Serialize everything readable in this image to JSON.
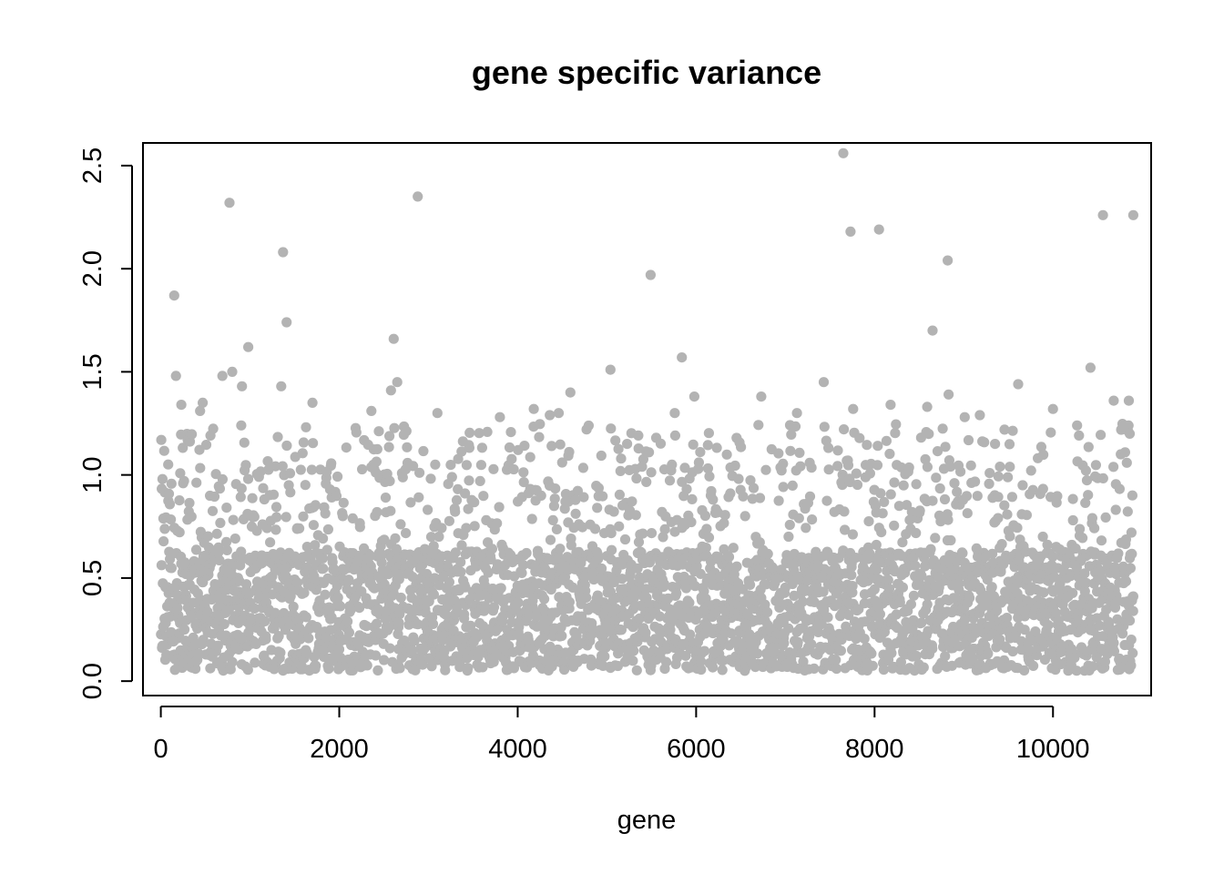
{
  "chart_data": {
    "type": "scatter",
    "title": "gene specific variance",
    "xlabel": "gene",
    "ylabel": "",
    "xlim": [
      -200,
      11100
    ],
    "ylim": [
      -0.07,
      2.61
    ],
    "x_ticks": [
      0,
      2000,
      4000,
      6000,
      8000,
      10000
    ],
    "x_tick_labels": [
      "0",
      "2000",
      "4000",
      "6000",
      "8000",
      "10000"
    ],
    "y_ticks": [
      0.0,
      0.5,
      1.0,
      1.5,
      2.0,
      2.5
    ],
    "y_tick_labels": [
      "0.0",
      "0.5",
      "1.0",
      "1.5",
      "2.0",
      "2.5"
    ],
    "grid": false,
    "legend": "none",
    "point_color": "#b3b3b3",
    "n_points": 10900,
    "series": [
      {
        "points": [
          [
            770,
            2.32
          ],
          [
            1370,
            2.08
          ],
          [
            1410,
            1.74
          ],
          [
            150,
            1.87
          ],
          [
            170,
            1.48
          ],
          [
            230,
            1.34
          ],
          [
            470,
            1.35
          ],
          [
            440,
            1.31
          ],
          [
            690,
            1.48
          ],
          [
            800,
            1.5
          ],
          [
            980,
            1.62
          ],
          [
            910,
            1.43
          ],
          [
            1350,
            1.43
          ],
          [
            1700,
            1.35
          ],
          [
            2360,
            1.31
          ],
          [
            2610,
            1.66
          ],
          [
            2580,
            1.41
          ],
          [
            2650,
            1.45
          ],
          [
            2880,
            2.35
          ],
          [
            3100,
            1.3
          ],
          [
            3800,
            1.28
          ],
          [
            4180,
            1.32
          ],
          [
            4360,
            1.29
          ],
          [
            4460,
            1.3
          ],
          [
            4590,
            1.4
          ],
          [
            5040,
            1.51
          ],
          [
            5490,
            1.97
          ],
          [
            5840,
            1.57
          ],
          [
            5980,
            1.38
          ],
          [
            5760,
            1.3
          ],
          [
            6730,
            1.38
          ],
          [
            7130,
            1.3
          ],
          [
            7430,
            1.45
          ],
          [
            7650,
            2.56
          ],
          [
            7730,
            2.18
          ],
          [
            7760,
            1.32
          ],
          [
            8050,
            2.19
          ],
          [
            8180,
            1.34
          ],
          [
            8590,
            1.33
          ],
          [
            8650,
            1.7
          ],
          [
            8820,
            2.04
          ],
          [
            8830,
            1.39
          ],
          [
            9010,
            1.28
          ],
          [
            9180,
            1.29
          ],
          [
            9610,
            1.44
          ],
          [
            10000,
            1.32
          ],
          [
            10270,
            1.24
          ],
          [
            10420,
            1.52
          ],
          [
            10560,
            2.26
          ],
          [
            10900,
            2.26
          ],
          [
            10680,
            1.36
          ],
          [
            10850,
            1.36
          ],
          [
            10860,
            1.2
          ]
        ]
      }
    ]
  }
}
